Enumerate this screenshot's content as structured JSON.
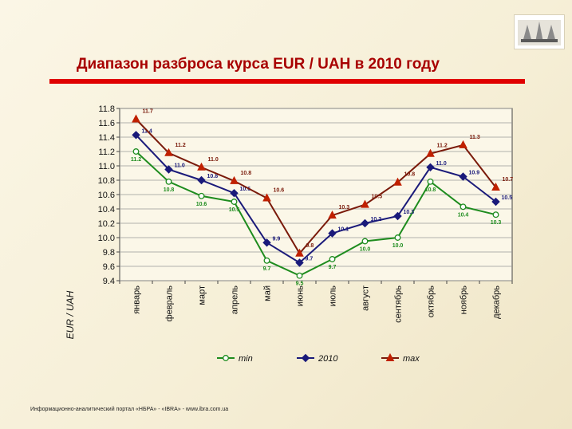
{
  "title": "Диапазон разброса курса EUR / UAH в 2010 году",
  "footer": "Информационно-аналитический портал «НБРА» - «IBRA» - www.ibra.com.ua",
  "chart_data": {
    "type": "line",
    "ylabel": "EUR / UAH",
    "ylim": [
      9.4,
      11.8
    ],
    "ytick_step": 0.2,
    "yticks": [
      "9.4",
      "9.6",
      "9.8",
      "10.0",
      "10.2",
      "10.4",
      "10.6",
      "10.8",
      "11.0",
      "11.2",
      "11.4",
      "11.6",
      "11.8"
    ],
    "grid": true,
    "legend_position": "bottom",
    "categories": [
      "январь",
      "февраль",
      "март",
      "апрель",
      "май",
      "июнь",
      "июль",
      "август",
      "сентябрь",
      "октябрь",
      "ноябрь",
      "декабрь"
    ],
    "series": [
      {
        "name": "min",
        "color": "#1e8c1e",
        "marker": "circle",
        "values": [
          11.2,
          10.78,
          10.58,
          10.5,
          9.68,
          9.47,
          9.7,
          9.95,
          10.0,
          10.78,
          10.43,
          10.32
        ],
        "labels": [
          "11.2",
          "10.8",
          "10.6",
          "10.5",
          "9.7",
          "9.5",
          "9.7",
          "10.0",
          "10.0",
          "10.8",
          "10.4",
          "10.3"
        ]
      },
      {
        "name": "2010",
        "color": "#1a1a7a",
        "marker": "diamond",
        "values": [
          11.43,
          10.95,
          10.8,
          10.62,
          9.93,
          9.65,
          10.06,
          10.2,
          10.3,
          10.98,
          10.85,
          10.5
        ],
        "labels": [
          "11.4",
          "11.0",
          "10.8",
          "10.6",
          "9.9",
          "9.7",
          "10.1",
          "10.2",
          "10.3",
          "11.0",
          "10.9",
          "10.5"
        ]
      },
      {
        "name": "max",
        "color": "#7a1a0a",
        "marker": "triangle",
        "values": [
          11.65,
          11.18,
          10.98,
          10.79,
          10.55,
          9.78,
          10.31,
          10.46,
          10.77,
          11.17,
          11.29,
          10.7
        ],
        "labels": [
          "11.7",
          "11.2",
          "11.0",
          "10.8",
          "10.6",
          "9.8",
          "10.3",
          "10.5",
          "10.8",
          "11.2",
          "11.3",
          "10.7"
        ]
      }
    ]
  }
}
